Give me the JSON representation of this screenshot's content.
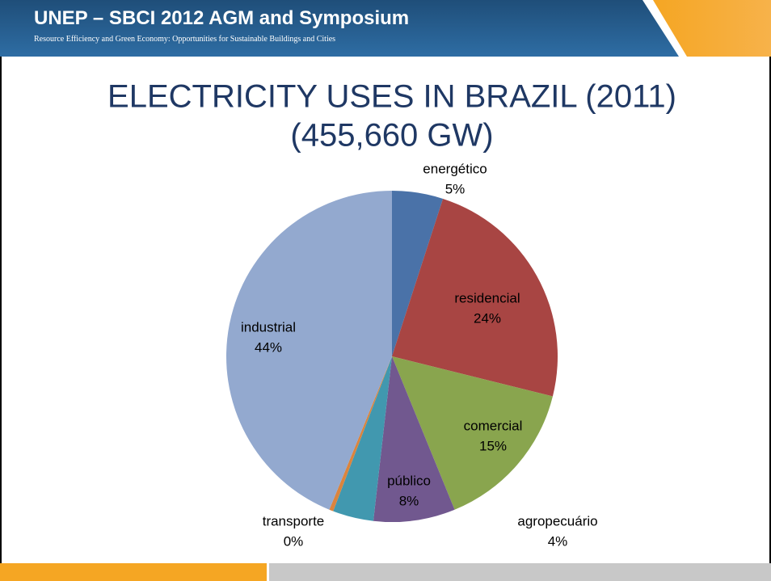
{
  "header": {
    "title": "UNEP – SBCI 2012 AGM and Symposium",
    "subtitle": "Resource Efficiency and Green Economy: Opportunities for Sustainable Buildings and Cities"
  },
  "chart_data": {
    "type": "pie",
    "title": "ELECTRICITY USES IN BRAZIL (2011)",
    "subtitle": "(455,660 GW)",
    "categories": [
      "energético",
      "residencial",
      "comercial",
      "público",
      "agropecuário",
      "transporte",
      "industrial"
    ],
    "values": [
      5,
      24,
      15,
      8,
      4,
      0.4,
      44
    ],
    "value_labels": [
      "5%",
      "24%",
      "15%",
      "8%",
      "4%",
      "0%",
      "44%"
    ],
    "colors": [
      "#4a72a8",
      "#a84543",
      "#89a54e",
      "#71588f",
      "#4198af",
      "#db843d",
      "#93a9cf"
    ]
  }
}
